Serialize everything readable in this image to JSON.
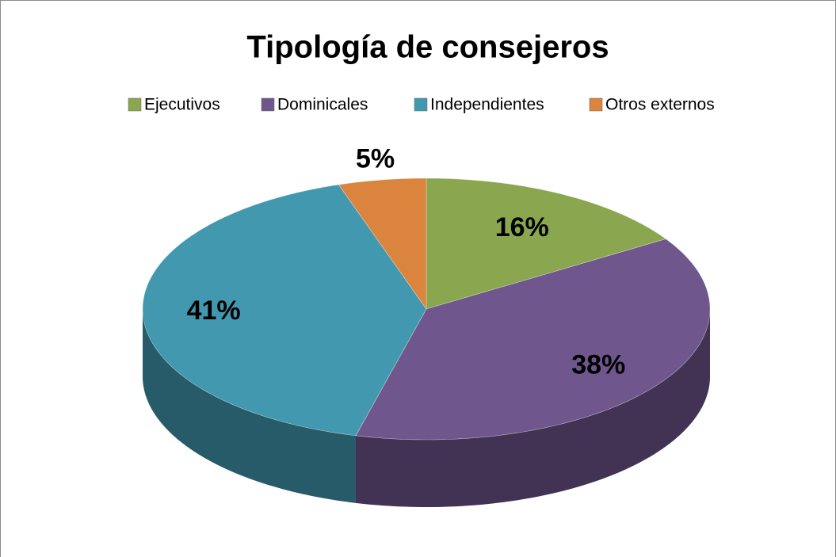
{
  "chart_data": {
    "type": "pie",
    "title": "Tipología de consejeros",
    "categories": [
      "Ejecutivos",
      "Dominicales",
      "Independientes",
      "Otros externos"
    ],
    "values": [
      16,
      38,
      41,
      5
    ],
    "value_labels": [
      "16%",
      "38%",
      "41%",
      "5%"
    ],
    "colors": [
      "#8aa64f",
      "#6f568c",
      "#4198af",
      "#db843d"
    ],
    "legend": "top"
  }
}
